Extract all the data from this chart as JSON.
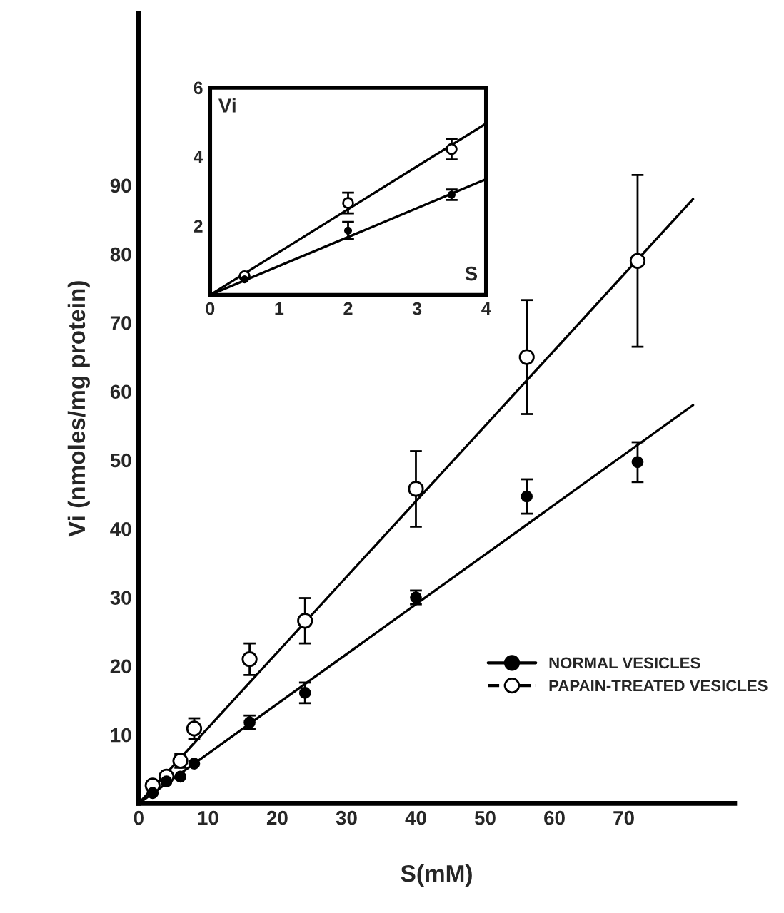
{
  "chart_data": [
    {
      "type": "scatter",
      "xlabel": "S(mM)",
      "ylabel": "Vi (nmoles/mg protein)",
      "xlim": [
        0,
        86
      ],
      "ylim": [
        0,
        115
      ],
      "xticks": [
        0,
        10,
        20,
        30,
        40,
        50,
        60,
        70
      ],
      "yticks": [
        10,
        20,
        30,
        40,
        50,
        60,
        70,
        80,
        90
      ],
      "legend": "lower right",
      "grid": false,
      "series": [
        {
          "name": "NORMAL VESICLES",
          "marker": "circle",
          "color": "#000000",
          "line_style": "solid",
          "x": [
            2,
            4,
            6,
            8,
            16,
            24,
            40,
            56,
            72
          ],
          "values": [
            1.5,
            3.2,
            3.9,
            5.8,
            11.8,
            16.1,
            30,
            44.7,
            49.7
          ],
          "errors": [
            null,
            null,
            null,
            null,
            1,
            1.5,
            1,
            2.5,
            2.9
          ]
        },
        {
          "name": "PAPAIN-TREATED VESICLES",
          "marker": "circle",
          "color": "#ffffff",
          "line_style": "dashed",
          "x": [
            2,
            4,
            6,
            8,
            16,
            24,
            40,
            56,
            72
          ],
          "values": [
            2.6,
            3.9,
            6.2,
            10.9,
            21,
            26.6,
            45.8,
            65,
            79
          ],
          "errors": [
            null,
            null,
            1,
            1.5,
            2.3,
            3.3,
            5.5,
            8.3,
            12.5
          ]
        },
        {
          "type": "line",
          "color": "#000000",
          "x": [
            0,
            80
          ],
          "values": [
            0,
            58
          ]
        },
        {
          "type": "line",
          "color": "#000000",
          "x": [
            0,
            80
          ],
          "values": [
            0,
            88
          ]
        }
      ]
    },
    {
      "type": "scatter",
      "xlabel": "S",
      "ylabel": "Vi",
      "xlim": [
        0,
        4
      ],
      "ylim": [
        0,
        6
      ],
      "xticks": [
        0,
        1,
        2,
        3,
        4
      ],
      "yticks": [
        2,
        4,
        6
      ],
      "grid": false,
      "series": [
        {
          "marker": "circle",
          "color": "#000000",
          "x": [
            0.5,
            2,
            3.5
          ],
          "values": [
            0.45,
            1.86,
            2.9
          ],
          "errors": [
            null,
            0.25,
            0.15
          ]
        },
        {
          "marker": "circle",
          "color": "#ffffff",
          "x": [
            0.5,
            2,
            3.5
          ],
          "values": [
            0.54,
            2.66,
            4.22
          ],
          "errors": [
            null,
            0.3,
            0.3
          ]
        },
        {
          "type": "line",
          "color": "#000000",
          "x": [
            0,
            4
          ],
          "values": [
            0,
            3.35
          ]
        },
        {
          "type": "line",
          "color": "#000000",
          "x": [
            0,
            4
          ],
          "values": [
            0,
            4.96
          ]
        }
      ]
    }
  ]
}
